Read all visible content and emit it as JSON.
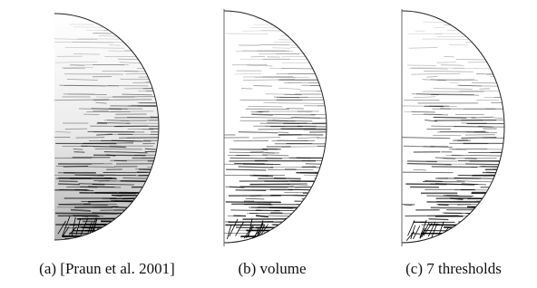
{
  "figure": {
    "panels": [
      {
        "caption": "(a) [Praun et al. 2001]"
      },
      {
        "caption": "(b) volume"
      },
      {
        "caption": "(c) 7 thresholds"
      }
    ]
  }
}
